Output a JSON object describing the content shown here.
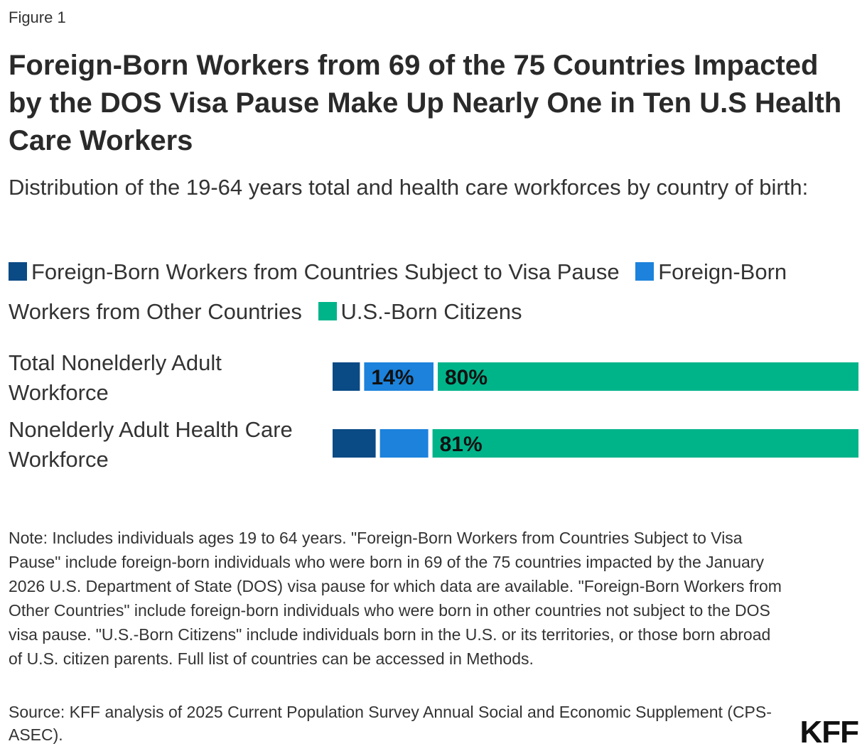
{
  "figure_label": "Figure 1",
  "title": "Foreign-Born Workers from 69 of the 75 Countries Impacted by the DOS Visa Pause Make Up Nearly One in Ten U.S Health Care Workers",
  "subtitle": "Distribution of the 19-64 years total and health care workforces by country of birth:",
  "colors": {
    "visa_pause": "#0a4a85",
    "other_countries": "#1c82dc",
    "us_born": "#00b48a"
  },
  "chart_data": {
    "type": "bar",
    "orientation": "horizontal",
    "stacked": true,
    "categories": [
      "Total Nonelderly Adult Workforce",
      "Nonelderly Adult Health Care Workforce"
    ],
    "series": [
      {
        "name": "Foreign-Born Workers from Countries Subject to Visa Pause",
        "values": [
          6,
          9
        ],
        "data_labels": [
          "",
          ""
        ]
      },
      {
        "name": "Foreign-Born Workers from Other Countries",
        "values": [
          14,
          10
        ],
        "data_labels": [
          "14%",
          ""
        ]
      },
      {
        "name": "U.S.-Born Citizens",
        "values": [
          80,
          81
        ],
        "data_labels": [
          "80%",
          "81%"
        ]
      }
    ],
    "xlim": [
      0,
      100
    ],
    "legend_position": "top",
    "grid": false
  },
  "note": "Note: Includes individuals ages 19 to 64 years. \"Foreign-Born Workers from Countries Subject to Visa Pause\" include foreign-born individuals who were born in 69 of the 75 countries impacted by the January 2026 U.S. Department of State (DOS) visa pause for which data are available. \"Foreign-Born Workers from Other Countries\" include foreign-born individuals who were born in other countries not subject to the DOS visa pause. \"U.S.-Born Citizens\" include individuals born in the U.S. or its territories, or those born abroad of U.S. citizen parents. Full list of countries can be accessed in Methods.",
  "source": "Source: KFF analysis of 2025 Current Population Survey Annual Social and Economic Supplement (CPS-ASEC).",
  "logo_text": "KFF"
}
